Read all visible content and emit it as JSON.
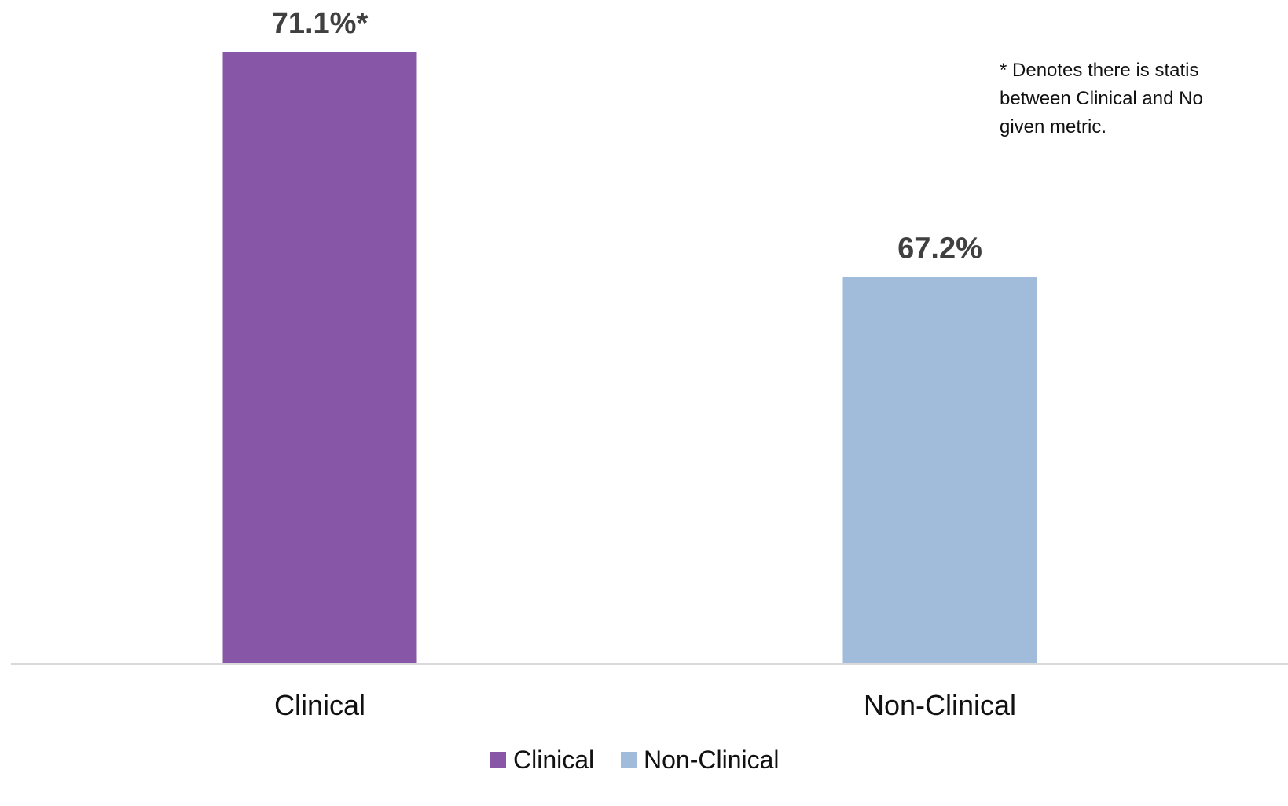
{
  "chart_data": {
    "type": "bar",
    "categories": [
      "Clinical",
      "Non-Clinical"
    ],
    "values": [
      71.1,
      67.2
    ],
    "value_labels": [
      "71.1%*",
      "67.2%"
    ],
    "colors": [
      "#8756A6",
      "#A0BCDA"
    ],
    "legend": {
      "placement": "bottom",
      "entries": [
        "Clinical",
        "Non-Clinical"
      ]
    },
    "title": "",
    "xlabel": "",
    "ylabel": "",
    "ylim": [
      60.5,
      71.1
    ],
    "grid": false,
    "annotation_lines": [
      "* Denotes there is statis",
      "between Clinical and No",
      "given metric."
    ]
  }
}
